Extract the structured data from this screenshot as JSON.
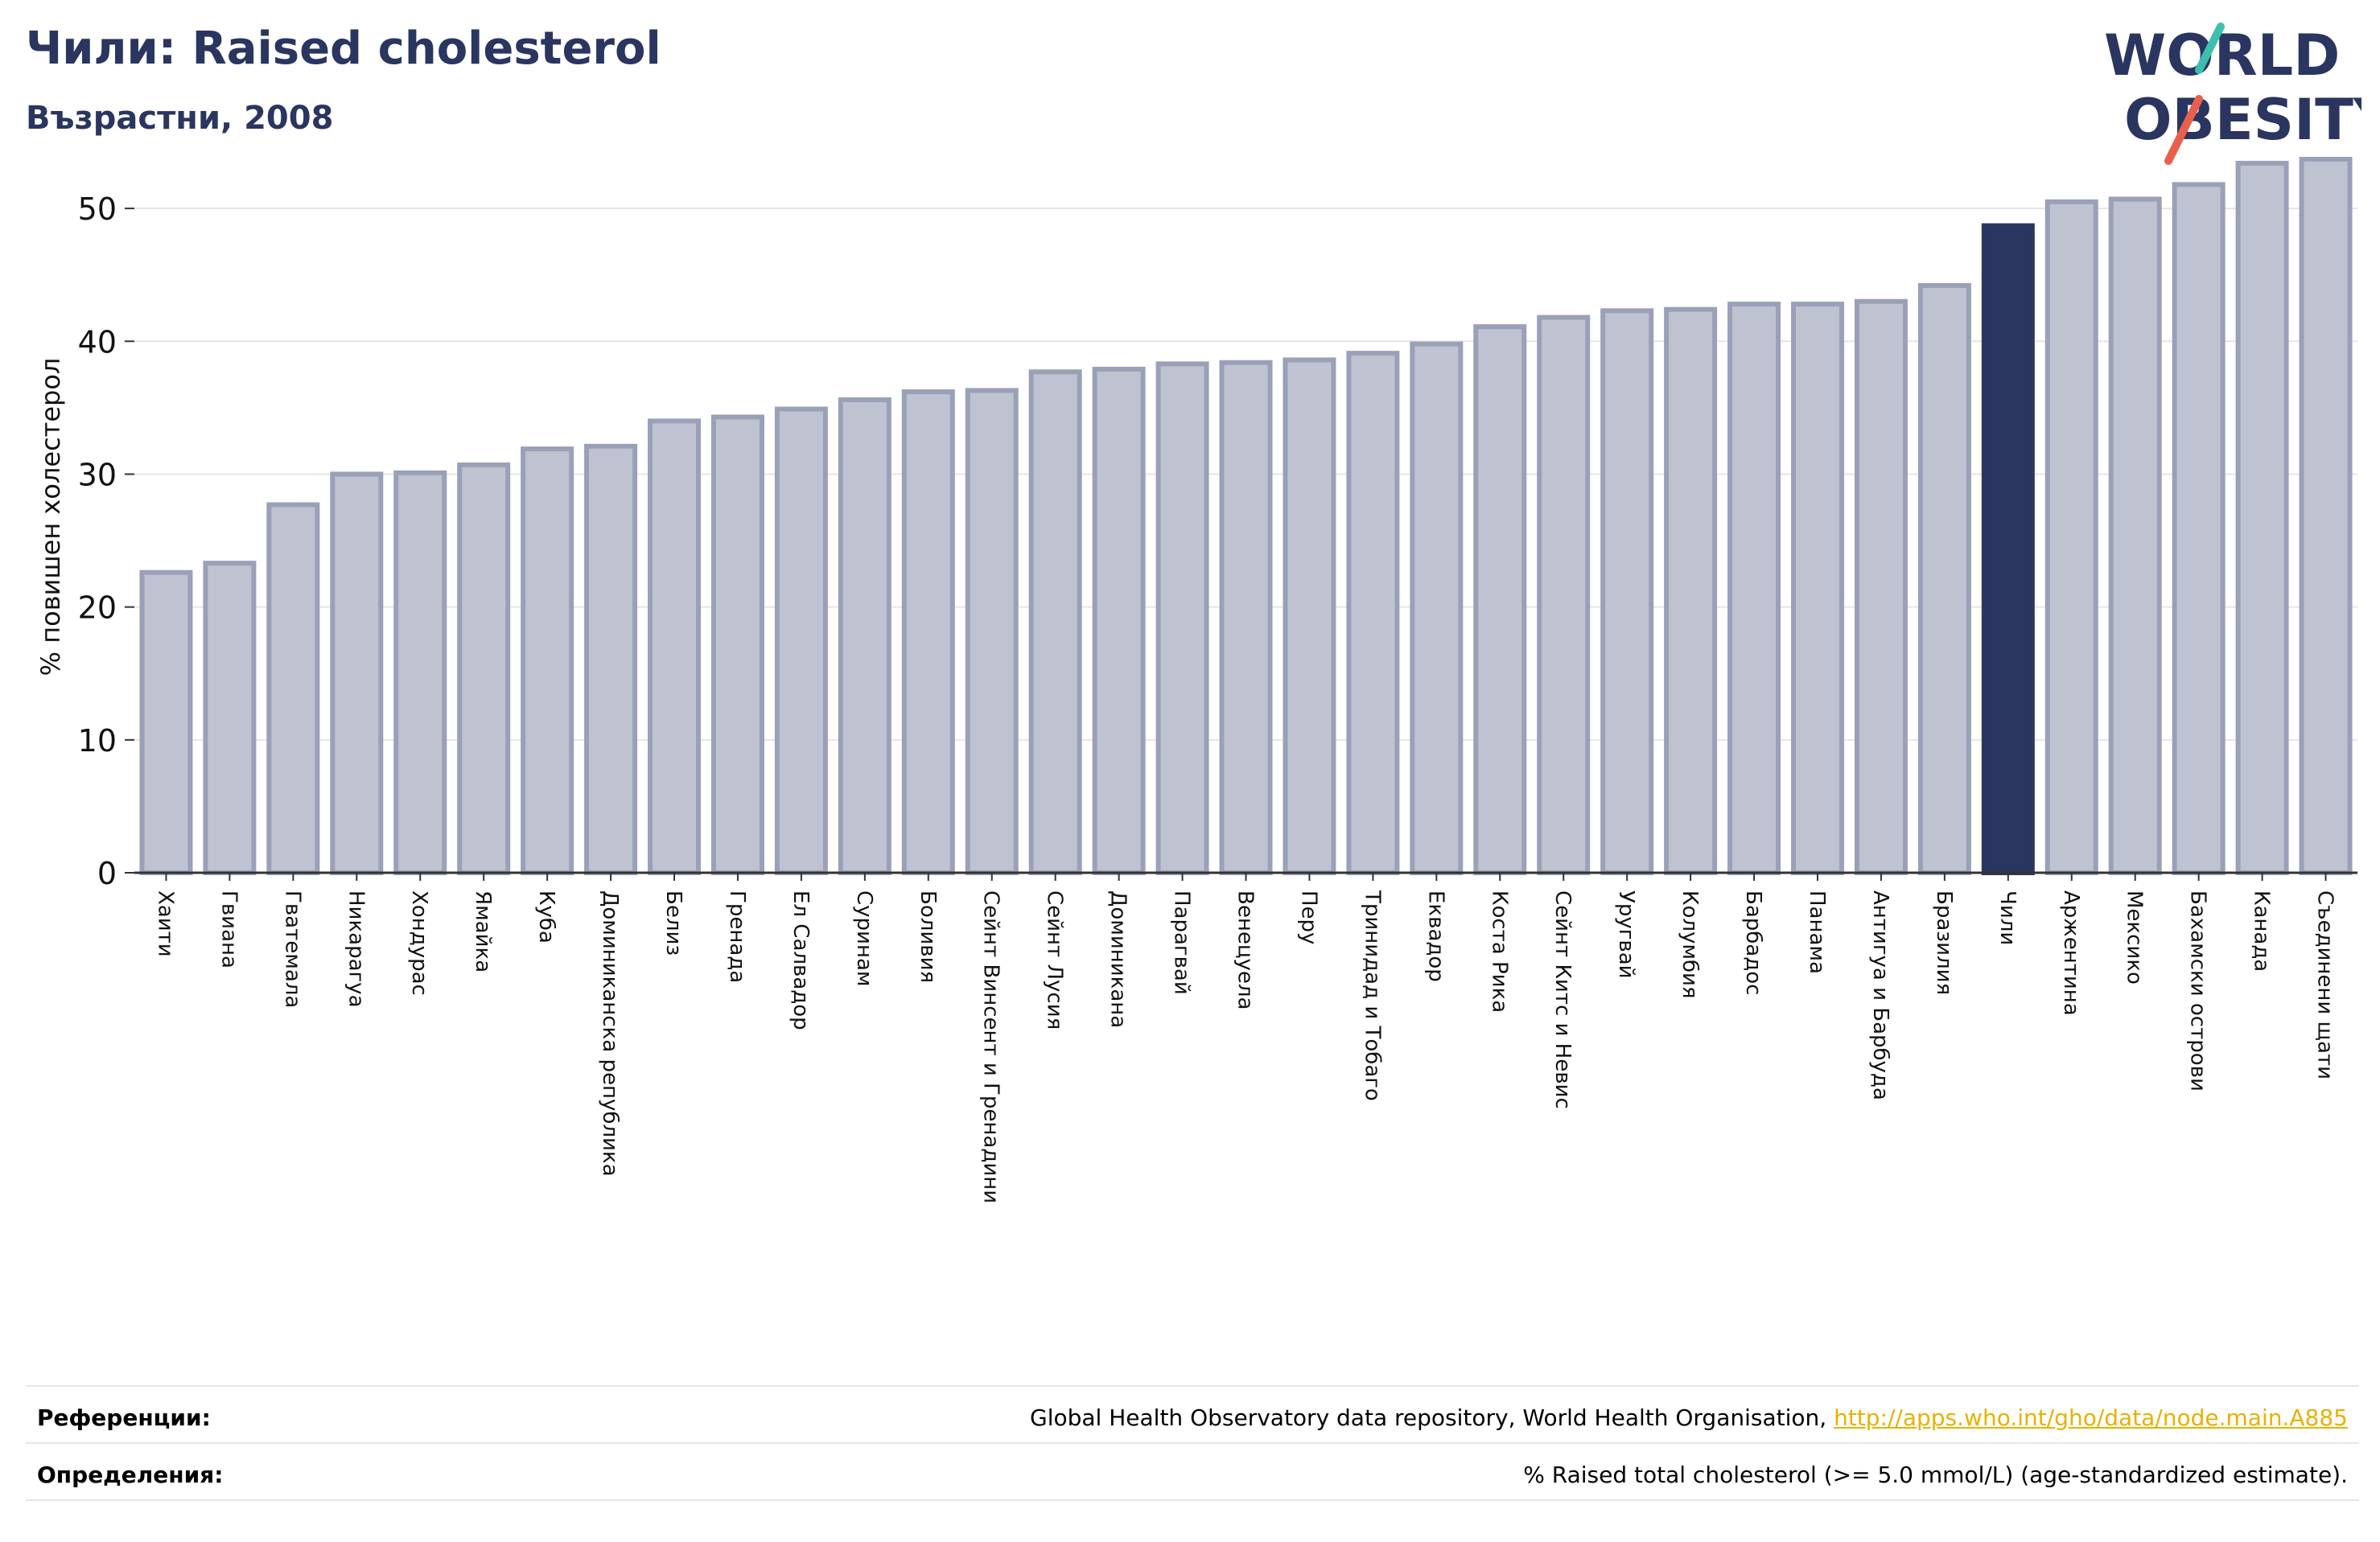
{
  "header": {
    "title": "Чили: Raised cholesterol",
    "subtitle": "Възрастни, 2008"
  },
  "logo": {
    "line1": "WORLD",
    "line2": "OBESITY"
  },
  "colors": {
    "bar_fill": "#bfc3d1",
    "bar_stroke": "#9aa0b8",
    "highlight": "#2a3560",
    "title": "#2a3560",
    "link": "#e8b100",
    "logo_teal": "#3dbfb0",
    "logo_red": "#e8604c"
  },
  "chart_data": {
    "type": "bar",
    "ylabel": "% повишен холестерол",
    "xlabel": "",
    "ylim": [
      0,
      56
    ],
    "yticks": [
      0,
      10,
      20,
      30,
      40,
      50
    ],
    "grid": true,
    "highlight": "Чили",
    "categories": [
      "Хаити",
      "Гвиана",
      "Гватемала",
      "Никарагуа",
      "Хондурас",
      "Ямайка",
      "Куба",
      "Доминиканска република",
      "Белиз",
      "Гренада",
      "Ел Салвадор",
      "Суринам",
      "Боливия",
      "Сейнт Винсент и Гренадини",
      "Сейнт Лусия",
      "Доминикана",
      "Парагвай",
      "Венецуела",
      "Перу",
      "Тринидад и Тобаго",
      "Еквадор",
      "Коста Рика",
      "Сейнт Китс и Невис",
      "Уругвай",
      "Колумбия",
      "Барбадос",
      "Панама",
      "Антигуа и Барбуда",
      "Бразилия",
      "Чили",
      "Аржентина",
      "Мексико",
      "Бахамски острови",
      "Канада",
      "Съединени щати"
    ],
    "values": [
      22.6,
      23.3,
      27.7,
      30.0,
      30.1,
      30.7,
      31.9,
      32.1,
      34.0,
      34.3,
      34.9,
      35.6,
      36.2,
      36.3,
      37.7,
      37.9,
      38.3,
      38.4,
      38.6,
      39.1,
      39.8,
      41.1,
      41.8,
      42.3,
      42.4,
      42.8,
      42.8,
      43.0,
      44.2,
      48.7,
      50.5,
      50.7,
      51.8,
      53.4,
      53.7
    ]
  },
  "footer": {
    "references_label": "Референции:",
    "references_text": "Global Health Observatory data repository, World Health Organisation, ",
    "references_link": "http://apps.who.int/gho/data/node.main.A885",
    "definitions_label": "Определения:",
    "definitions_text": "% Raised total cholesterol (>= 5.0 mmol/L) (age-standardized estimate)."
  }
}
